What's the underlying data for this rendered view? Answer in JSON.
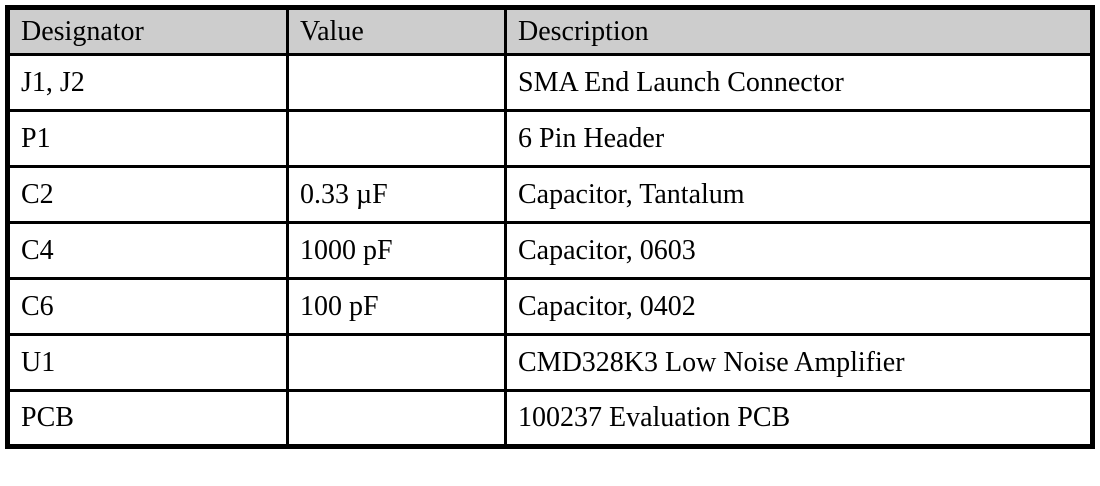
{
  "colors": {
    "header_bg": "#cdcdcd",
    "border": "#000000",
    "text": "#000000"
  },
  "table": {
    "headers": [
      "Designator",
      "Value",
      "Description"
    ],
    "rows": [
      {
        "designator": "J1, J2",
        "value": "",
        "description": "SMA End Launch Connector"
      },
      {
        "designator": "P1",
        "value": "",
        "description": "6 Pin Header"
      },
      {
        "designator": "C2",
        "value": "0.33 µF",
        "description": "Capacitor, Tantalum"
      },
      {
        "designator": "C4",
        "value": "1000 pF",
        "description": "Capacitor, 0603"
      },
      {
        "designator": "C6",
        "value": "100 pF",
        "description": "Capacitor, 0402"
      },
      {
        "designator": "U1",
        "value": "",
        "description": "CMD328K3 Low Noise Amplifier"
      },
      {
        "designator": "PCB",
        "value": "",
        "description": "100237 Evaluation PCB"
      }
    ]
  }
}
